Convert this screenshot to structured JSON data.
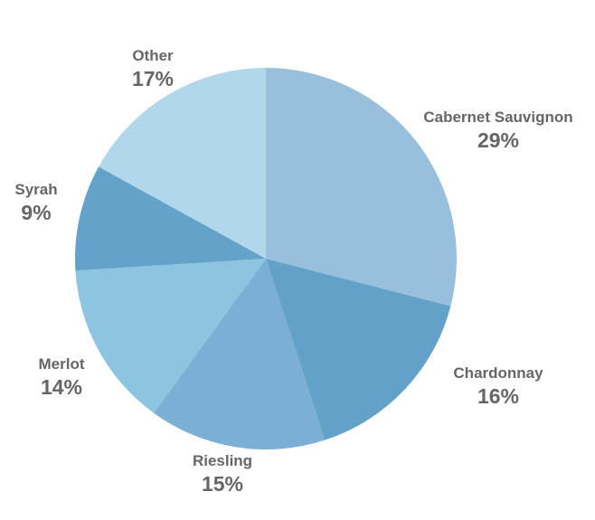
{
  "chart_data": {
    "type": "pie",
    "title": "",
    "start_angle_deg": 0,
    "direction": "clockwise",
    "slices": [
      {
        "label": "Cabernet Sauvignon",
        "value": 29,
        "value_label": "29%",
        "color": "#98bfdb"
      },
      {
        "label": "Chardonnay",
        "value": 16,
        "value_label": "16%",
        "color": "#62a2c8"
      },
      {
        "label": "Riesling",
        "value": 15,
        "value_label": "15%",
        "color": "#7bb0d4"
      },
      {
        "label": "Merlot",
        "value": 14,
        "value_label": "14%",
        "color": "#8dc4e0"
      },
      {
        "label": "Syrah",
        "value": 9,
        "value_label": "9%",
        "color": "#63a3c9"
      },
      {
        "label": "Other",
        "value": 17,
        "value_label": "17%",
        "color": "#b2d6ea"
      }
    ]
  }
}
